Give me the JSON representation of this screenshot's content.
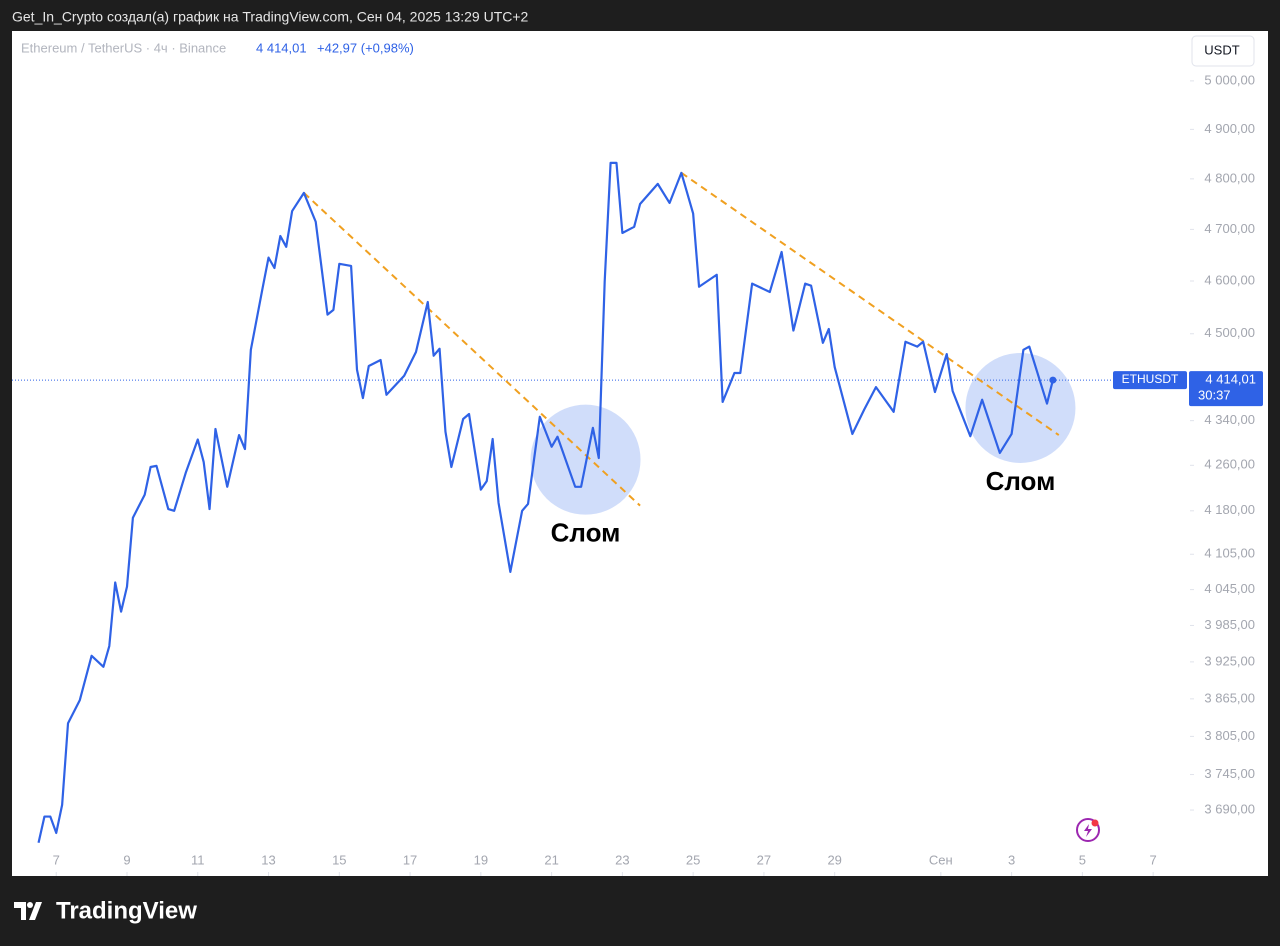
{
  "header": {
    "caption": "Get_In_Crypto создал(а) график на TradingView.com, Сен 04, 2025 13:29 UTC+2"
  },
  "chart_data": {
    "type": "line",
    "legend_change": "+42,97 (+0,98%)",
    "currency_button": "USDT",
    "symbol_label": "ETHUSDT",
    "countdown": "30:37",
    "current_price": {
      "value": 4414.01,
      "label": "4 414,01"
    },
    "log_scale": true,
    "x": [
      "2025-08-06T12:00",
      "2025-08-06T16:00",
      "2025-08-06T20:00",
      "2025-08-07T00:00",
      "2025-08-07T04:00",
      "2025-08-07T08:00",
      "2025-08-07T16:00",
      "2025-08-08T00:00",
      "2025-08-08T08:00",
      "2025-08-08T12:00",
      "2025-08-08T16:00",
      "2025-08-08T20:00",
      "2025-08-09T00:00",
      "2025-08-09T04:00",
      "2025-08-09T12:00",
      "2025-08-09T16:00",
      "2025-08-09T20:00",
      "2025-08-10T04:00",
      "2025-08-10T08:00",
      "2025-08-10T16:00",
      "2025-08-11T00:00",
      "2025-08-11T04:00",
      "2025-08-11T08:00",
      "2025-08-11T12:00",
      "2025-08-11T20:00",
      "2025-08-12T04:00",
      "2025-08-12T08:00",
      "2025-08-12T12:00",
      "2025-08-12T20:00",
      "2025-08-13T00:00",
      "2025-08-13T04:00",
      "2025-08-13T08:00",
      "2025-08-13T12:00",
      "2025-08-13T16:00",
      "2025-08-14T00:00",
      "2025-08-14T08:00",
      "2025-08-14T16:00",
      "2025-08-14T20:00",
      "2025-08-15T00:00",
      "2025-08-15T08:00",
      "2025-08-15T12:00",
      "2025-08-15T16:00",
      "2025-08-15T20:00",
      "2025-08-16T04:00",
      "2025-08-16T08:00",
      "2025-08-16T20:00",
      "2025-08-17T04:00",
      "2025-08-17T12:00",
      "2025-08-17T16:00",
      "2025-08-17T20:00",
      "2025-08-18T00:00",
      "2025-08-18T04:00",
      "2025-08-18T12:00",
      "2025-08-18T16:00",
      "2025-08-19T00:00",
      "2025-08-19T04:00",
      "2025-08-19T08:00",
      "2025-08-19T12:00",
      "2025-08-19T20:00",
      "2025-08-20T04:00",
      "2025-08-20T08:00",
      "2025-08-20T16:00",
      "2025-08-21T00:00",
      "2025-08-21T04:00",
      "2025-08-21T16:00",
      "2025-08-21T20:00",
      "2025-08-22T04:00",
      "2025-08-22T08:00",
      "2025-08-22T12:00",
      "2025-08-22T16:00",
      "2025-08-22T20:00",
      "2025-08-23T00:00",
      "2025-08-23T08:00",
      "2025-08-23T12:00",
      "2025-08-24T00:00",
      "2025-08-24T08:00",
      "2025-08-24T16:00",
      "2025-08-25T00:00",
      "2025-08-25T04:00",
      "2025-08-25T16:00",
      "2025-08-25T20:00",
      "2025-08-26T04:00",
      "2025-08-26T08:00",
      "2025-08-26T16:00",
      "2025-08-27T04:00",
      "2025-08-27T12:00",
      "2025-08-27T20:00",
      "2025-08-28T04:00",
      "2025-08-28T08:00",
      "2025-08-28T16:00",
      "2025-08-28T20:00",
      "2025-08-29T00:00",
      "2025-08-29T12:00",
      "2025-08-29T20:00",
      "2025-08-30T04:00",
      "2025-08-30T16:00",
      "2025-08-31T00:00",
      "2025-08-31T08:00",
      "2025-08-31T12:00",
      "2025-08-31T20:00",
      "2025-09-01T04:00",
      "2025-09-01T08:00",
      "2025-09-01T20:00",
      "2025-09-02T04:00",
      "2025-09-02T16:00",
      "2025-09-03T00:00",
      "2025-09-03T08:00",
      "2025-09-03T12:00",
      "2025-09-04T00:00",
      "2025-09-04T04:00"
    ],
    "series": [
      {
        "name": "Ethereum / TetherUS · 4ч · Binance",
        "color": "#2f62e6",
        "values": [
          3640,
          3680,
          3680,
          3655,
          3698,
          3826,
          3863,
          3935,
          3917,
          3951,
          4057,
          4008,
          4050,
          4168,
          4208,
          4257,
          4259,
          4183,
          4180,
          4248,
          4306,
          4266,
          4183,
          4325,
          4222,
          4314,
          4289,
          4470,
          4587,
          4645,
          4625,
          4687,
          4666,
          4736,
          4772,
          4715,
          4536,
          4545,
          4633,
          4629,
          4433,
          4381,
          4440,
          4451,
          4387,
          4422,
          4466,
          4560,
          4459,
          4472,
          4320,
          4257,
          4343,
          4352,
          4217,
          4232,
          4307,
          4194,
          4075,
          4180,
          4192,
          4347,
          4293,
          4311,
          4222,
          4222,
          4327,
          4273,
          4599,
          4832,
          4832,
          4693,
          4705,
          4750,
          4790,
          4752,
          4812,
          4731,
          4589,
          4612,
          4374,
          4427,
          4427,
          4595,
          4579,
          4656,
          4506,
          4595,
          4591,
          4483,
          4509,
          4438,
          4316,
          4360,
          4401,
          4356,
          4485,
          4476,
          4485,
          4392,
          4462,
          4394,
          4312,
          4378,
          4282,
          4316,
          4470,
          4476,
          4371,
          4414.01
        ]
      }
    ],
    "trendlines": [
      {
        "color": "#f0a020",
        "x": [
          "2025-08-14T00:00",
          "2025-08-23T12:00"
        ],
        "values": [
          4772,
          4189
        ]
      },
      {
        "color": "#f0a020",
        "x": [
          "2025-08-24T16:00",
          "2025-09-04T08:00"
        ],
        "values": [
          4812,
          4314
        ]
      }
    ],
    "annotations": [
      {
        "text": "Слом",
        "x": "2025-08-21T23:00",
        "value": 4270
      },
      {
        "text": "Слом",
        "x": "2025-09-03T06:00",
        "value": 4363
      }
    ],
    "xlim": [
      "2025-08-05T18:00",
      "2025-09-08T01:00"
    ],
    "xticks": [
      {
        "value": "2025-08-07T00:00",
        "label": "7"
      },
      {
        "value": "2025-08-09T00:00",
        "label": "9"
      },
      {
        "value": "2025-08-11T00:00",
        "label": "11"
      },
      {
        "value": "2025-08-13T00:00",
        "label": "13"
      },
      {
        "value": "2025-08-15T00:00",
        "label": "15"
      },
      {
        "value": "2025-08-17T00:00",
        "label": "17"
      },
      {
        "value": "2025-08-19T00:00",
        "label": "19"
      },
      {
        "value": "2025-08-21T00:00",
        "label": "21"
      },
      {
        "value": "2025-08-23T00:00",
        "label": "23"
      },
      {
        "value": "2025-08-25T00:00",
        "label": "25"
      },
      {
        "value": "2025-08-27T00:00",
        "label": "27"
      },
      {
        "value": "2025-08-29T00:00",
        "label": "29"
      },
      {
        "value": "2025-09-01T00:00",
        "label": "Сен"
      },
      {
        "value": "2025-09-03T00:00",
        "label": "3"
      },
      {
        "value": "2025-09-05T00:00",
        "label": "5"
      },
      {
        "value": "2025-09-07T00:00",
        "label": "7"
      }
    ],
    "ylim": [
      3590,
      5105
    ],
    "yticks": [
      {
        "value": 5000,
        "label": "5 000,00"
      },
      {
        "value": 4900,
        "label": "4 900,00"
      },
      {
        "value": 4800,
        "label": "4 800,00"
      },
      {
        "value": 4700,
        "label": "4 700,00"
      },
      {
        "value": 4600,
        "label": "4 600,00"
      },
      {
        "value": 4500,
        "label": "4 500,00"
      },
      {
        "value": 4340,
        "label": "4 340,00"
      },
      {
        "value": 4260,
        "label": "4 260,00"
      },
      {
        "value": 4180,
        "label": "4 180,00"
      },
      {
        "value": 4105,
        "label": "4 105,00"
      },
      {
        "value": 4045,
        "label": "4 045,00"
      },
      {
        "value": 3985,
        "label": "3 985,00"
      },
      {
        "value": 3925,
        "label": "3 925,00"
      },
      {
        "value": 3865,
        "label": "3 865,00"
      },
      {
        "value": 3805,
        "label": "3 805,00"
      },
      {
        "value": 3745,
        "label": "3 745,00"
      },
      {
        "value": 3690,
        "label": "3 690,00"
      }
    ]
  },
  "footer": {
    "brand": "TradingView"
  }
}
